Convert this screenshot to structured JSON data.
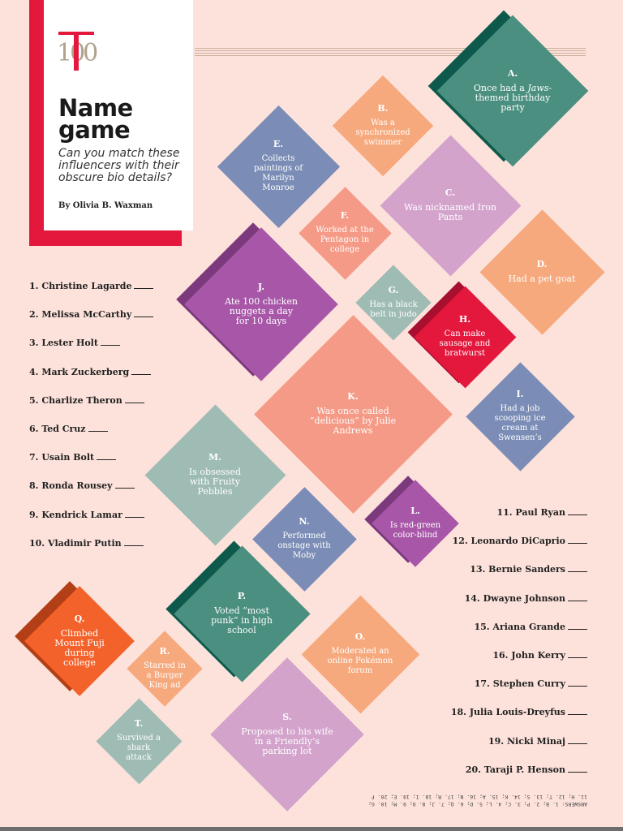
{
  "header": {
    "logo_letter": "T",
    "logo_number": "100",
    "title": "Name game",
    "subtitle": "Can you match these influencers with their obscure bio details?",
    "byline": "By Olivia B. Waxman"
  },
  "clues": [
    {
      "letter": "A.",
      "text_html": "Once had a <i>Jaws</i>-themed birthday party",
      "color": "#4a8f7f",
      "shadow": "#0d5a4c"
    },
    {
      "letter": "B.",
      "text_html": "Was a synchronized swimmer",
      "color": "#f6a97d"
    },
    {
      "letter": "C.",
      "text_html": "Was nicknamed Iron Pants",
      "color": "#d3a3cc"
    },
    {
      "letter": "D.",
      "text_html": "Had a pet goat",
      "color": "#f6a97d"
    },
    {
      "letter": "E.",
      "text_html": "Collects paintings of Marilyn Monroe",
      "color": "#7b8db6"
    },
    {
      "letter": "F.",
      "text_html": "Worked at the Pentagon in college",
      "color": "#f49a86"
    },
    {
      "letter": "G.",
      "text_html": "Has a black belt in judo",
      "color": "#9fbcb4"
    },
    {
      "letter": "H.",
      "text_html": "Can make sausage and bratwurst",
      "color": "#e4173c",
      "shadow": "#a80f2e"
    },
    {
      "letter": "I.",
      "text_html": "Had a job scooping ice cream at Swensen’s",
      "color": "#7b8db6"
    },
    {
      "letter": "J.",
      "text_html": "Ate 100 chicken nuggets a day for 10 days",
      "color": "#a857a8",
      "shadow": "#7c3a7d"
    },
    {
      "letter": "K.",
      "text_html": "Was once called “delicious” by Julie Andrews",
      "color": "#f49a86"
    },
    {
      "letter": "L.",
      "text_html": "Is red-green color-blind",
      "color": "#a857a8",
      "shadow": "#7c3a7d"
    },
    {
      "letter": "M.",
      "text_html": "Is obsessed with Fruity Pebbles",
      "color": "#9fbcb4"
    },
    {
      "letter": "N.",
      "text_html": "Performed onstage with Moby",
      "color": "#7b8db6"
    },
    {
      "letter": "O.",
      "text_html": "Moderated an online Pokémon forum",
      "color": "#f6a97d"
    },
    {
      "letter": "P.",
      "text_html": "Voted “most punk” in high school",
      "color": "#4a8f7f",
      "shadow": "#0d5a4c"
    },
    {
      "letter": "Q.",
      "text_html": "Climbed Mount Fuji during college",
      "color": "#f4622b",
      "shadow": "#b23f16"
    },
    {
      "letter": "R.",
      "text_html": "Starred in a Burger King ad",
      "color": "#f6a97d"
    },
    {
      "letter": "S.",
      "text_html": "Proposed to his wife in a Friendly’s parking lot",
      "color": "#d3a3cc"
    },
    {
      "letter": "T.",
      "text_html": "Survived a shark attack",
      "color": "#9fbcb4"
    }
  ],
  "names_left": [
    "1. Christine Lagarde",
    "2. Melissa McCarthy",
    "3. Lester Holt",
    "4. Mark Zuckerberg",
    "5. Charlize Theron",
    "6. Ted Cruz",
    "7. Usain Bolt",
    "8. Ronda Rousey",
    "9. Kendrick Lamar",
    "10. Vladimir Putin"
  ],
  "names_right": [
    "11. Paul Ryan",
    "12. Leonardo DiCaprio",
    "13. Bernie Sanders",
    "14. Dwayne Johnson",
    "15. Ariana Grande",
    "16. John Kerry",
    "17. Stephen Curry",
    "18. Julia Louis-Dreyfus",
    "19. Nicki Minaj",
    "20. Taraji P. Henson"
  ],
  "answers": {
    "line1": "ANSWERS: 1. B; 2. P; 3. C; 4. L; 5. D; 6. Q; 7. J; 8. O; 9. M; 10. G;",
    "line2": "11. H; 12. T; 13. S; 14. K; 15. A; 16. N; 17. R; 18. I; 19. E; 20. F"
  }
}
